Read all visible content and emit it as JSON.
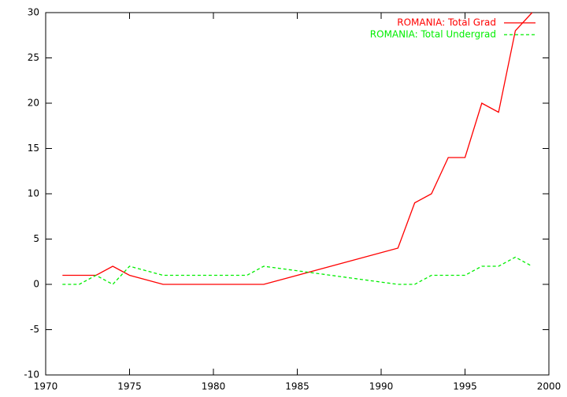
{
  "chart_data": {
    "type": "line",
    "x": [
      1971,
      1972,
      1973,
      1974,
      1975,
      1977,
      1982,
      1983,
      1991,
      1992,
      1993,
      1994,
      1995,
      1996,
      1997,
      1998,
      1999
    ],
    "series": [
      {
        "name": "ROMANIA: Total Grad",
        "color": "#ff0000",
        "dash": false,
        "values": [
          1,
          1,
          1,
          2,
          1,
          0,
          0,
          0,
          4,
          9,
          10,
          14,
          14,
          20,
          19,
          28,
          30
        ]
      },
      {
        "name": "ROMANIA: Total Undergrad",
        "color": "#00ee00",
        "dash": true,
        "values": [
          0,
          0,
          1,
          0,
          2,
          1,
          1,
          2,
          0,
          0,
          1,
          1,
          1,
          2,
          2,
          3,
          2
        ]
      }
    ],
    "xlim": [
      1970,
      2000
    ],
    "xticks": [
      1970,
      1975,
      1980,
      1985,
      1990,
      1995,
      2000
    ],
    "ylim": [
      -10,
      30
    ],
    "yticks": [
      -10,
      -5,
      0,
      5,
      10,
      15,
      20,
      25,
      30
    ],
    "legend": "top-right",
    "grid": false
  }
}
